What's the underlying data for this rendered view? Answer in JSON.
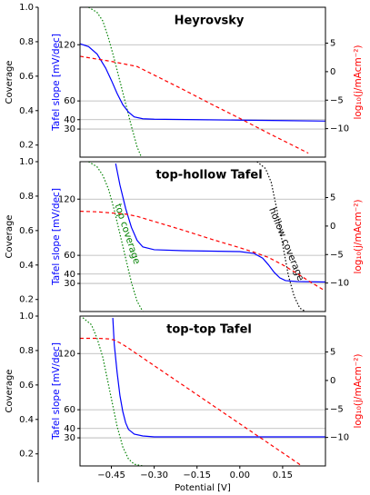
{
  "chart_data": [
    {
      "type": "line",
      "title": "Heyrovsky",
      "xlim": [
        -0.56,
        0.3
      ],
      "ylim": [
        0,
        160
      ],
      "yticks": [
        30,
        40,
        60,
        120
      ],
      "ylabel": "Tafel slope [mV/dec]",
      "grid": true,
      "y2lim": [
        -15,
        11.3
      ],
      "y2ticks": [
        5,
        0,
        {
          "value": -5,
          "label": "−5"
        },
        {
          "value": -10,
          "label": "−10"
        }
      ],
      "y2label": "log₁₀(j/mAcm⁻²)",
      "y3lim": [
        0.13,
        1.0
      ],
      "y3ticks": [
        {
          "value": 1,
          "label": "1.0"
        },
        0.8,
        0.6,
        0.4,
        0.2
      ],
      "y3label": "Coverage",
      "series": [
        {
          "color": "#008000",
          "style": "dotted",
          "axis": "y3",
          "x": [
            -0.53,
            -0.5,
            -0.48,
            -0.46,
            -0.44,
            -0.42,
            -0.4,
            -0.38,
            -0.36,
            -0.345
          ],
          "values": [
            1.0,
            0.97,
            0.92,
            0.82,
            0.7,
            0.57,
            0.44,
            0.31,
            0.19,
            0.13
          ]
        },
        {
          "color": "#0000ff",
          "style": "solid",
          "axis": "y",
          "x": [
            -0.56,
            -0.53,
            -0.5,
            -0.47,
            -0.45,
            -0.43,
            -0.41,
            -0.39,
            -0.37,
            -0.34,
            -0.3,
            -0.15,
            0.0,
            0.15,
            0.3
          ],
          "values": [
            121,
            118,
            110,
            95,
            82,
            68,
            56,
            48,
            43,
            41,
            40.5,
            40,
            39.5,
            39,
            38.5
          ]
        },
        {
          "color": "#ff0000",
          "style": "dashed",
          "axis": "y2",
          "x": [
            -0.56,
            -0.5,
            -0.45,
            -0.4,
            -0.36,
            -0.3,
            -0.2,
            -0.1,
            0.0,
            0.1,
            0.2,
            0.24
          ],
          "values": [
            2.7,
            2.2,
            1.8,
            1.3,
            0.9,
            -0.6,
            -3.1,
            -5.7,
            -8.2,
            -10.8,
            -13.3,
            -14.3
          ]
        }
      ]
    },
    {
      "type": "line",
      "title": "top-hollow Tafel",
      "xlim": [
        -0.56,
        0.3
      ],
      "ylim": [
        0,
        160
      ],
      "yticks": [
        30,
        40,
        60,
        120
      ],
      "ylabel": "Tafel slope [mV/dec]",
      "grid": true,
      "y2lim": [
        -15,
        11.3
      ],
      "y2ticks": [
        5,
        0,
        {
          "value": -5,
          "label": "−5"
        },
        {
          "value": -10,
          "label": "−10"
        }
      ],
      "y2label": "log₁₀(j/mAcm⁻²)",
      "y3lim": [
        0.13,
        1.0
      ],
      "y3ticks": [
        {
          "value": 1,
          "label": "1.0"
        },
        0.8,
        0.6,
        0.4,
        0.2
      ],
      "y3label": "Coverage",
      "series": [
        {
          "name": "top coverage",
          "color": "#008000",
          "style": "dotted",
          "axis": "y3",
          "x": [
            -0.53,
            -0.5,
            -0.48,
            -0.46,
            -0.44,
            -0.42,
            -0.4,
            -0.38,
            -0.36,
            -0.34
          ],
          "values": [
            1.0,
            0.97,
            0.92,
            0.84,
            0.72,
            0.58,
            0.44,
            0.3,
            0.19,
            0.13
          ]
        },
        {
          "name": "hollow coverage",
          "color": "#000000",
          "style": "dotted",
          "axis": "y3",
          "x": [
            0.06,
            0.09,
            0.11,
            0.13,
            0.15,
            0.17,
            0.19,
            0.21,
            0.23
          ],
          "values": [
            1.0,
            0.96,
            0.88,
            0.72,
            0.52,
            0.34,
            0.22,
            0.15,
            0.13
          ]
        },
        {
          "color": "#0000ff",
          "style": "solid",
          "axis": "y",
          "x": [
            -0.435,
            -0.42,
            -0.4,
            -0.38,
            -0.36,
            -0.34,
            -0.3,
            -0.2,
            -0.1,
            0.0,
            0.05,
            0.08,
            0.1,
            0.12,
            0.14,
            0.16,
            0.2,
            0.3
          ],
          "values": [
            158,
            135,
            110,
            90,
            76,
            69,
            66,
            65,
            64.5,
            64,
            62,
            57,
            50,
            42,
            36,
            33,
            32,
            31.5
          ]
        },
        {
          "color": "#ff0000",
          "style": "dashed",
          "axis": "y2",
          "x": [
            -0.56,
            -0.5,
            -0.45,
            -0.4,
            -0.36,
            -0.3,
            -0.2,
            -0.1,
            0.0,
            0.05,
            0.1,
            0.15,
            0.2,
            0.25,
            0.3
          ],
          "values": [
            2.6,
            2.5,
            2.3,
            2.1,
            1.7,
            0.8,
            -0.7,
            -2.3,
            -3.8,
            -4.6,
            -5.5,
            -6.8,
            -8.3,
            -9.9,
            -11.4
          ]
        }
      ]
    },
    {
      "type": "line",
      "title": "top-top Tafel",
      "xlim": [
        -0.56,
        0.3
      ],
      "xticks": [
        {
          "value": -0.45,
          "label": "−0.45"
        },
        {
          "value": -0.3,
          "label": "−0.30"
        },
        {
          "value": -0.15,
          "label": "−0.15"
        },
        {
          "value": 0,
          "label": "0.00"
        },
        0.15
      ],
      "xlabel": "Potential [V]",
      "ylim": [
        0,
        160
      ],
      "yticks": [
        30,
        40,
        60,
        120
      ],
      "ylabel": "Tafel slope [mV/dec]",
      "grid": true,
      "y2lim": [
        -15,
        11.3
      ],
      "y2ticks": [
        5,
        0,
        {
          "value": -5,
          "label": "−5"
        },
        {
          "value": -10,
          "label": "−10"
        }
      ],
      "y2label": "log₁₀(j/mAcm⁻²)",
      "y3lim": [
        0.13,
        1.0
      ],
      "y3ticks": [
        {
          "value": 1,
          "label": "1.0"
        },
        0.8,
        0.6,
        0.4,
        0.2
      ],
      "y3label": "Coverage",
      "series": [
        {
          "color": "#008000",
          "style": "dotted",
          "axis": "y3",
          "x": [
            -0.55,
            -0.52,
            -0.5,
            -0.48,
            -0.46,
            -0.45,
            -0.43,
            -0.41,
            -0.39,
            -0.37,
            -0.34
          ],
          "values": [
            0.99,
            0.95,
            0.87,
            0.76,
            0.6,
            0.52,
            0.36,
            0.24,
            0.17,
            0.14,
            0.13
          ]
        },
        {
          "color": "#0000ff",
          "style": "solid",
          "axis": "y",
          "x": [
            -0.445,
            -0.44,
            -0.43,
            -0.42,
            -0.41,
            -0.4,
            -0.39,
            -0.37,
            -0.34,
            -0.3,
            0.3
          ],
          "values": [
            158,
            130,
            100,
            75,
            58,
            46,
            39,
            34,
            32,
            31,
            31
          ]
        },
        {
          "color": "#ff0000",
          "style": "dashed",
          "axis": "y2",
          "x": [
            -0.56,
            -0.5,
            -0.46,
            -0.44,
            -0.42,
            -0.4,
            -0.35,
            -0.3,
            -0.2,
            -0.1,
            0.0,
            0.1,
            0.2,
            0.22
          ],
          "values": [
            7.4,
            7.4,
            7.3,
            7.1,
            6.6,
            6.0,
            4.3,
            2.6,
            -0.8,
            -4.2,
            -7.6,
            -11.0,
            -14.4,
            -15.1
          ]
        }
      ]
    }
  ]
}
